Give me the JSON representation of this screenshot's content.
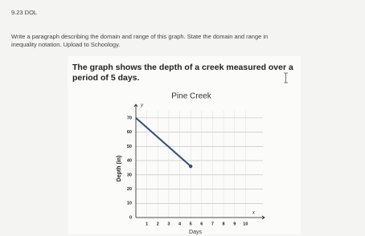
{
  "header": "9.23 DOL",
  "instructions": [
    "Write a paragraph describing the domain and range of this graph. State the domain and range in",
    "inequality notation. Upload to Schoology."
  ],
  "prompt": [
    "The graph shows the depth of a creek measured over a",
    "period of 5 days."
  ],
  "chart_data": {
    "type": "line",
    "title": "Pine Creek",
    "x_label": "Days",
    "y_label": "Depth (in)",
    "y_axis_name": "y",
    "x_axis_name": "x",
    "x": [
      0,
      5
    ],
    "series": [
      {
        "name": "Depth",
        "color": "#2f4f7a",
        "values": [
          70,
          36
        ]
      }
    ],
    "xlim": [
      0,
      11
    ],
    "ylim": [
      0,
      75
    ],
    "xticks": [
      1,
      2,
      3,
      4,
      5,
      6,
      7,
      8,
      9,
      10
    ],
    "yticks": [
      0,
      10,
      20,
      30,
      40,
      50,
      60,
      70
    ],
    "grid": true
  }
}
